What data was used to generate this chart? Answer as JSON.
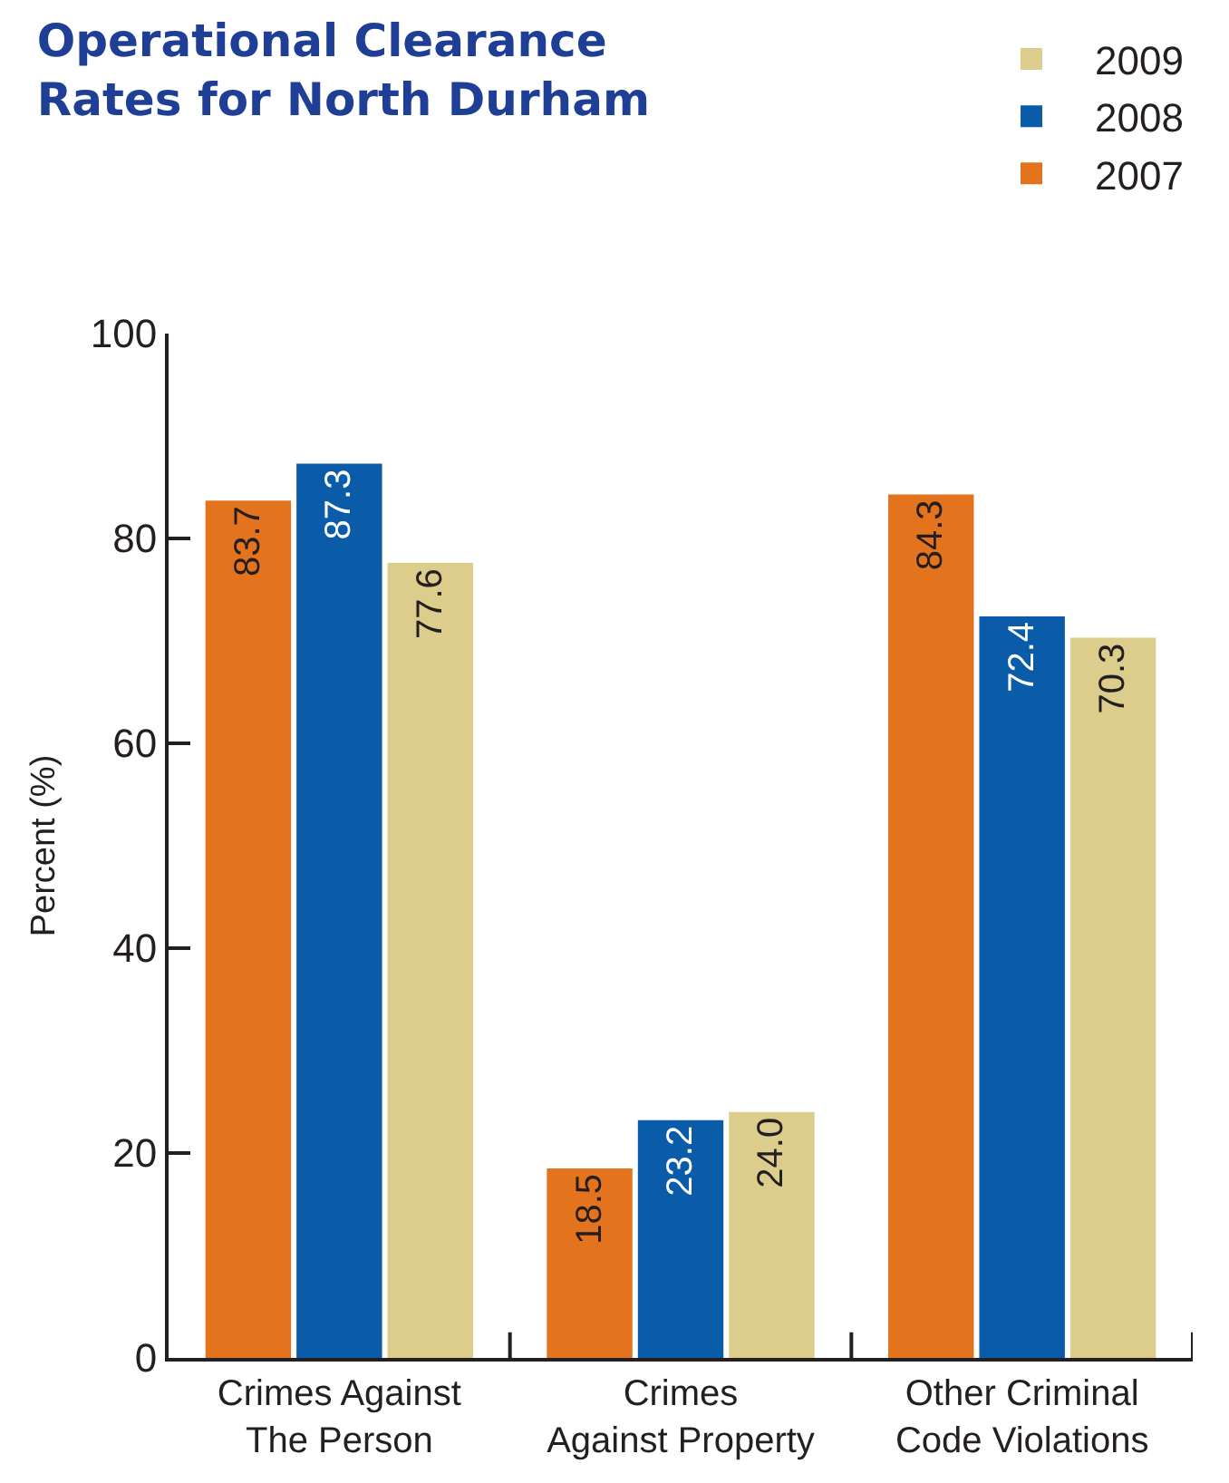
{
  "chart_data": {
    "type": "bar",
    "title": "Operational Clearance\nRates for North Durham",
    "ylabel": "Percent (%)",
    "categories": [
      "Crimes Against\nThe Person",
      "Crimes\nAgainst Property",
      "Other Criminal\nCode Violations"
    ],
    "series": [
      {
        "name": "2007",
        "color": "#e4731e",
        "values": [
          83.7,
          18.5,
          84.3
        ],
        "value_labels": [
          "83.7",
          "18.5",
          "84.3"
        ]
      },
      {
        "name": "2008",
        "color": "#0a5ba8",
        "values": [
          87.3,
          23.2,
          72.4
        ],
        "value_labels": [
          "87.3",
          "23.2",
          "72.4"
        ]
      },
      {
        "name": "2009",
        "color": "#dccd8c",
        "values": [
          77.6,
          24.0,
          70.3
        ],
        "value_labels": [
          "77.6",
          "24.0",
          "70.3"
        ]
      }
    ],
    "ylim": [
      0,
      100
    ],
    "yticks": [
      0,
      20,
      40,
      60,
      80,
      100
    ],
    "legend": "top right"
  }
}
